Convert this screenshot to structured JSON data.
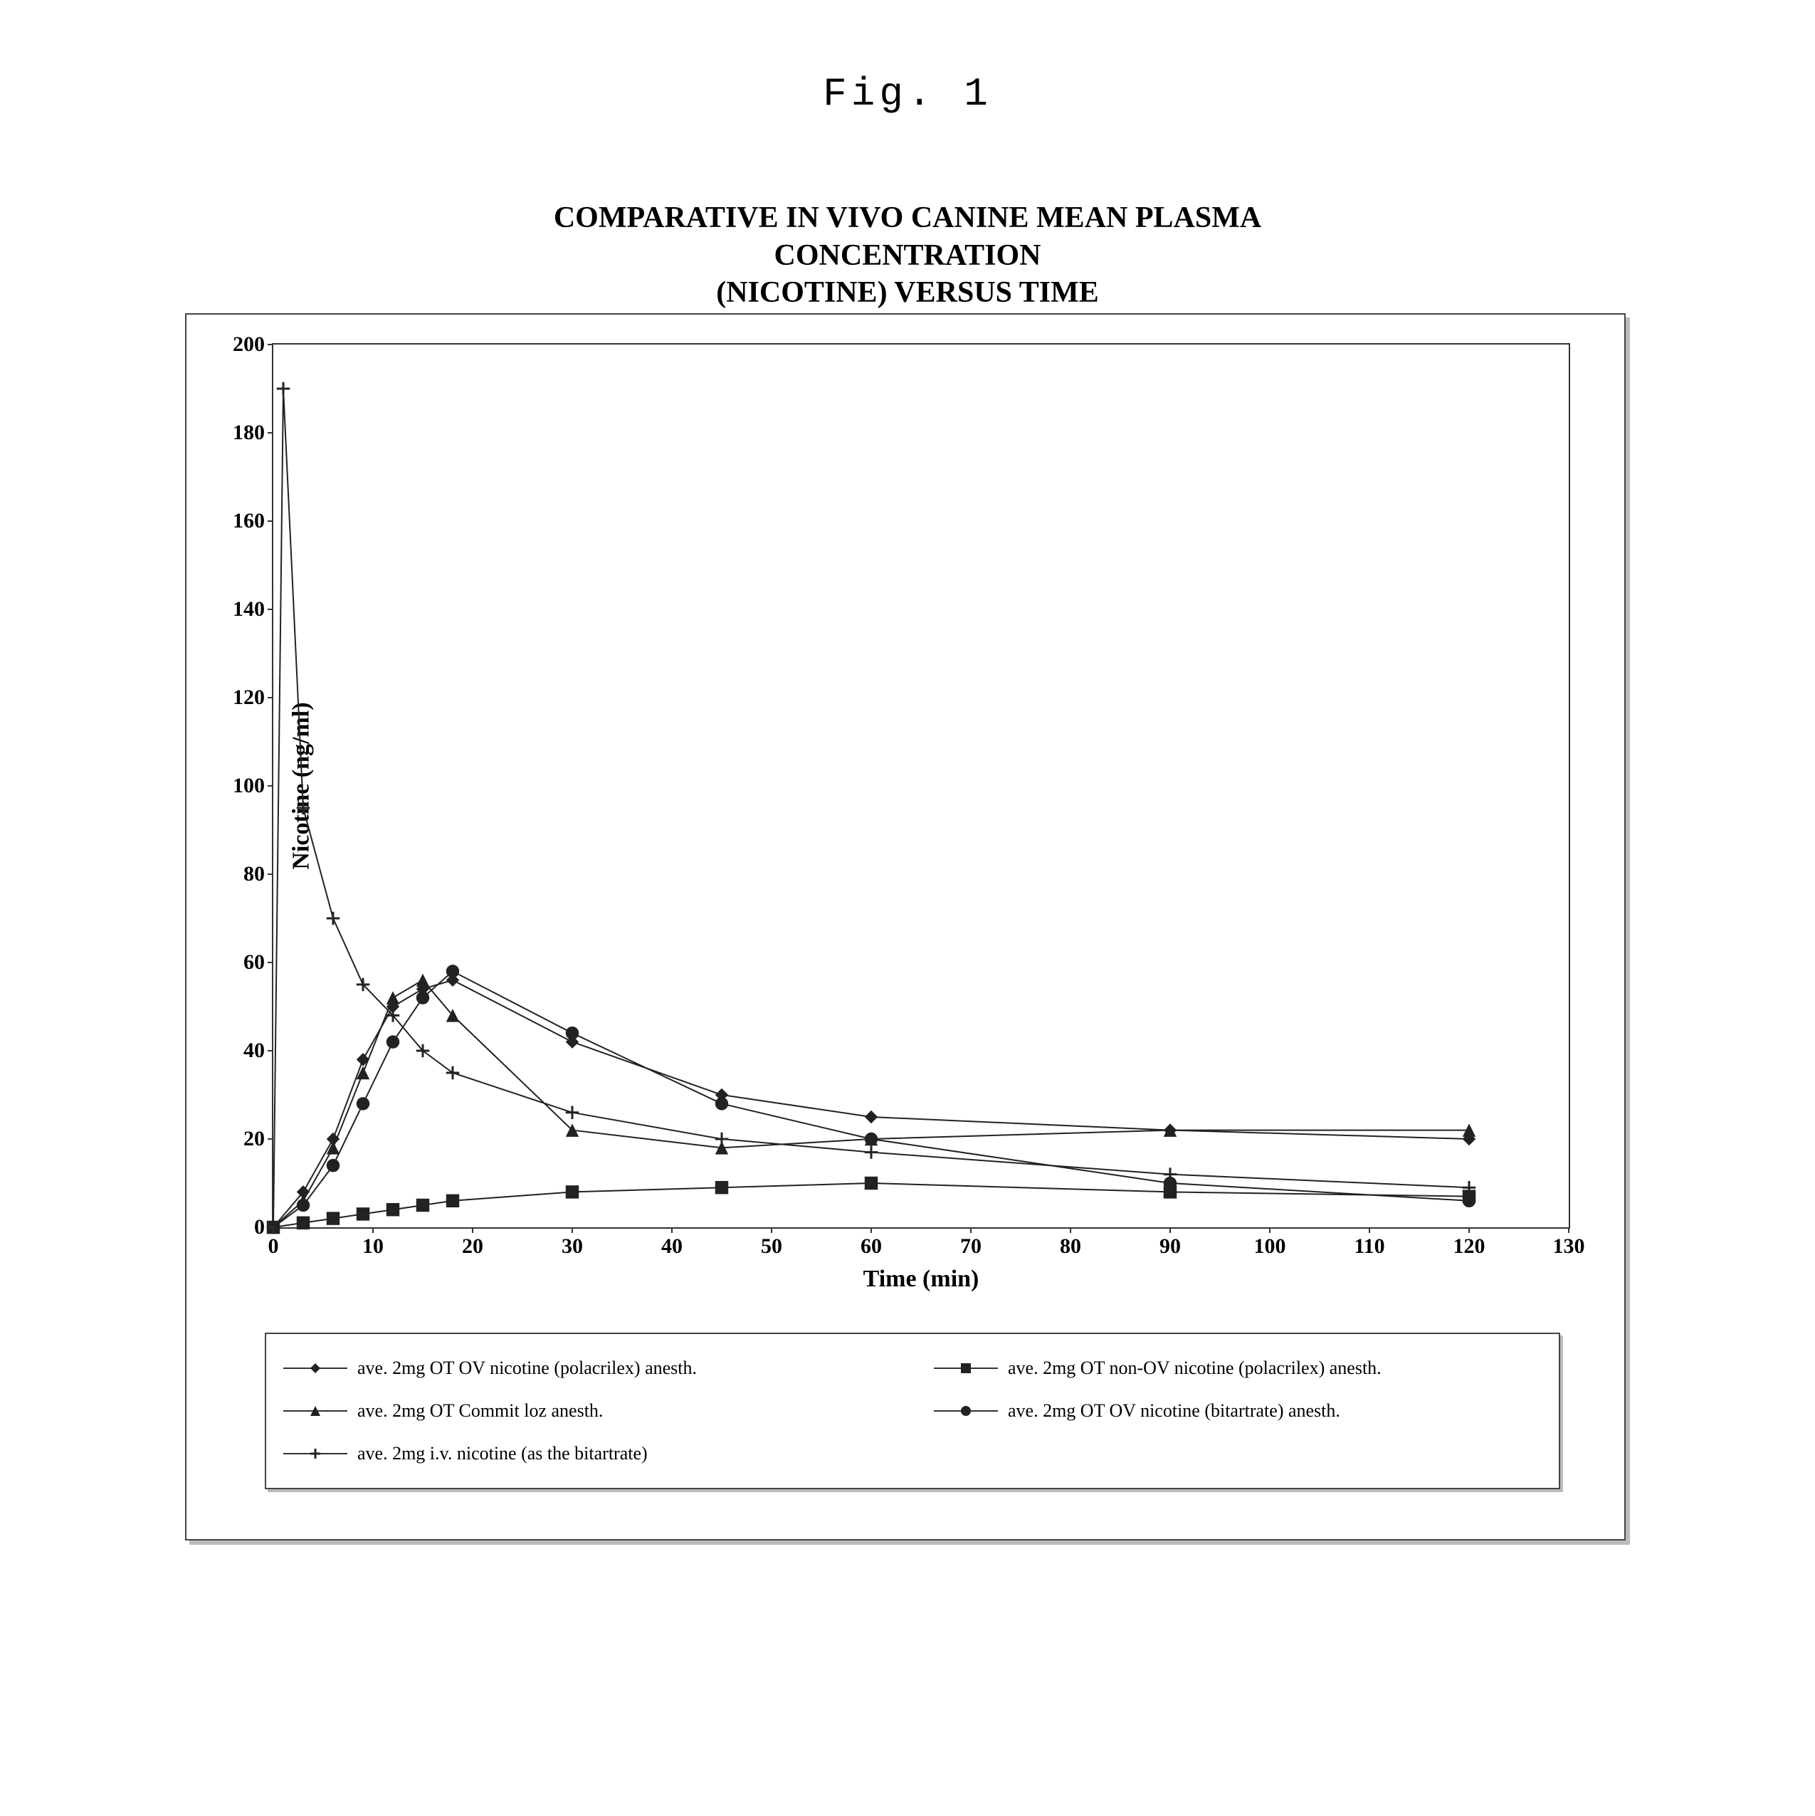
{
  "figure_label": "Fig. 1",
  "title_line1": "COMPARATIVE IN VIVO CANINE MEAN PLASMA CONCENTRATION",
  "title_line2": "(NICOTINE) VERSUS TIME",
  "chart": {
    "type": "line",
    "xlabel": "Time (min)",
    "ylabel": "Nicotine (ng/ml)",
    "xlim": [
      0,
      130
    ],
    "ylim": [
      0,
      200
    ],
    "xtick_step": 10,
    "ytick_step": 20,
    "xticks": [
      0,
      10,
      20,
      30,
      40,
      50,
      60,
      70,
      80,
      90,
      100,
      110,
      120,
      130
    ],
    "yticks": [
      0,
      20,
      40,
      60,
      80,
      100,
      120,
      140,
      160,
      180,
      200
    ],
    "background_color": "#ffffff",
    "axis_color": "#333333",
    "tick_fontsize": 30,
    "label_fontsize": 34,
    "label_fontweight": "bold",
    "line_width": 2,
    "marker_size": 12,
    "series": [
      {
        "id": "ov_polacrilex",
        "label": "ave. 2mg OT OV nicotine (polacrilex) anesth.",
        "marker": "diamond",
        "color": "#222222",
        "x": [
          0,
          3,
          6,
          9,
          12,
          15,
          18,
          30,
          45,
          60,
          90,
          120
        ],
        "y": [
          0,
          8,
          20,
          38,
          50,
          54,
          56,
          42,
          30,
          25,
          22,
          20
        ]
      },
      {
        "id": "commit_loz",
        "label": "ave. 2mg OT Commit loz anesth.",
        "marker": "triangle",
        "color": "#222222",
        "x": [
          0,
          3,
          6,
          9,
          12,
          15,
          18,
          30,
          45,
          60,
          90,
          120
        ],
        "y": [
          0,
          6,
          18,
          35,
          52,
          56,
          48,
          22,
          18,
          20,
          22,
          22
        ]
      },
      {
        "id": "iv_bitartrate",
        "label": "ave. 2mg i.v. nicotine (as the bitartrate)",
        "marker": "plus",
        "color": "#222222",
        "x": [
          0,
          1,
          3,
          6,
          9,
          12,
          15,
          18,
          30,
          45,
          60,
          90,
          120
        ],
        "y": [
          0,
          190,
          95,
          70,
          55,
          48,
          40,
          35,
          26,
          20,
          17,
          12,
          9
        ]
      },
      {
        "id": "nonov_polacrilex",
        "label": "ave. 2mg OT non-OV nicotine (polacrilex) anesth.",
        "marker": "square",
        "color": "#222222",
        "x": [
          0,
          3,
          6,
          9,
          12,
          15,
          18,
          30,
          45,
          60,
          90,
          120
        ],
        "y": [
          0,
          1,
          2,
          3,
          4,
          5,
          6,
          8,
          9,
          10,
          8,
          7
        ]
      },
      {
        "id": "ov_bitartrate",
        "label": "ave. 2mg OT OV nicotine (bitartrate) anesth.",
        "marker": "circle",
        "color": "#222222",
        "x": [
          0,
          3,
          6,
          9,
          12,
          15,
          18,
          30,
          45,
          60,
          90,
          120
        ],
        "y": [
          0,
          5,
          14,
          28,
          42,
          52,
          58,
          44,
          28,
          20,
          10,
          6
        ]
      }
    ]
  },
  "legend": {
    "border_color": "#444444",
    "font_size": 26,
    "layout": "2col-3row"
  }
}
